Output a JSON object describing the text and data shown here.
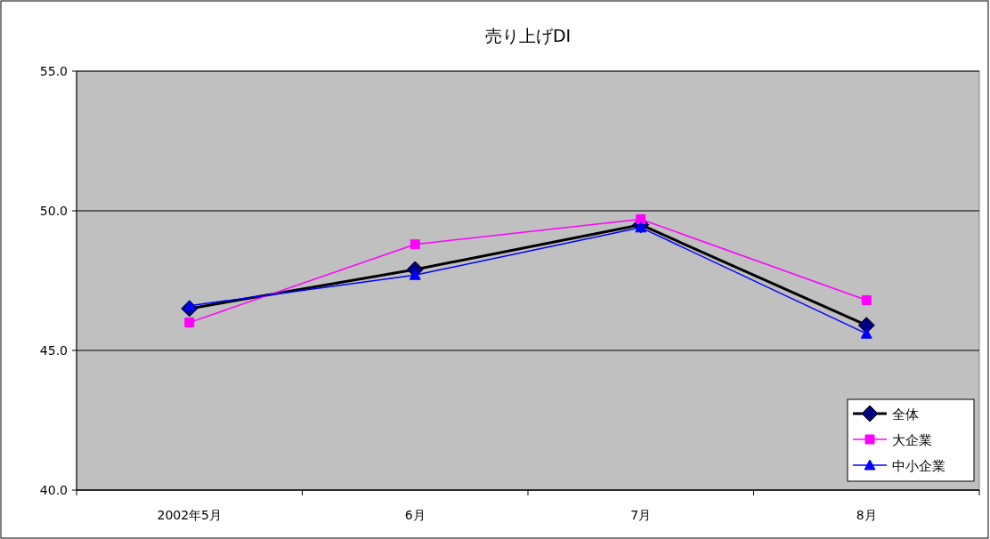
{
  "chart_data": {
    "type": "line",
    "title": "売り上げDI",
    "categories": [
      "2002年5月",
      "6月",
      "7月",
      "8月"
    ],
    "series": [
      {
        "name": "全体",
        "color": "#000000",
        "marker": "diamond",
        "values": [
          46.5,
          47.9,
          49.5,
          45.9
        ]
      },
      {
        "name": "大企業",
        "color": "#ff00ff",
        "marker": "square",
        "values": [
          46.0,
          48.8,
          49.7,
          46.8
        ]
      },
      {
        "name": "中小企業",
        "color": "#0000ff",
        "marker": "triangle",
        "values": [
          46.6,
          47.7,
          49.4,
          45.6
        ]
      }
    ],
    "ylim": [
      40,
      55
    ],
    "yticks": [
      {
        "value": 40,
        "label": "40.0"
      },
      {
        "value": 45,
        "label": "45.0"
      },
      {
        "value": 50,
        "label": "50.0"
      },
      {
        "value": 55,
        "label": "55.0"
      }
    ],
    "grid": "y",
    "legend": "bottom right"
  }
}
